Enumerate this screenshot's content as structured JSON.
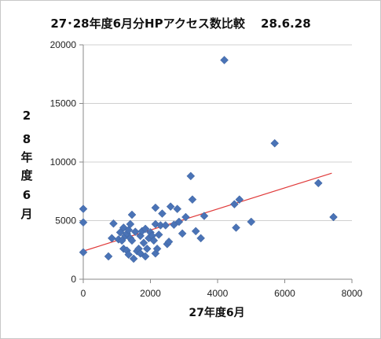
{
  "chart_data": {
    "type": "scatter",
    "title": "27･28年度6月分HPアクセス数比較　 28.6.28",
    "xlabel": "27年度6月",
    "ylabel": [
      "2",
      "8",
      "年",
      "度",
      "6",
      "月"
    ],
    "xlim": [
      0,
      8000
    ],
    "ylim": [
      0,
      20000
    ],
    "xticks": [
      "0",
      "2000",
      "4000",
      "6000",
      "8000"
    ],
    "yticks": [
      "0",
      "5000",
      "10000",
      "15000",
      "20000"
    ],
    "grid": "horizontal",
    "legend": "none",
    "trendline": {
      "type": "linear",
      "from": [
        0,
        2400
      ],
      "to": [
        7400,
        9050
      ]
    },
    "colors": {
      "marker": "#4a73b6",
      "trendline": "#e03a3a",
      "grid": "#d0d0d0",
      "axis": "#8a8a8a"
    },
    "points": [
      {
        "x": 0,
        "y": 6000
      },
      {
        "x": 0,
        "y": 4850
      },
      {
        "x": 0,
        "y": 2300
      },
      {
        "x": 750,
        "y": 1950
      },
      {
        "x": 850,
        "y": 3500
      },
      {
        "x": 900,
        "y": 4750
      },
      {
        "x": 1050,
        "y": 3400
      },
      {
        "x": 1100,
        "y": 4000
      },
      {
        "x": 1150,
        "y": 3300
      },
      {
        "x": 1200,
        "y": 2600
      },
      {
        "x": 1200,
        "y": 4400
      },
      {
        "x": 1250,
        "y": 3700
      },
      {
        "x": 1300,
        "y": 3900
      },
      {
        "x": 1300,
        "y": 2450
      },
      {
        "x": 1350,
        "y": 4200
      },
      {
        "x": 1350,
        "y": 2100
      },
      {
        "x": 1400,
        "y": 3500
      },
      {
        "x": 1400,
        "y": 4700
      },
      {
        "x": 1450,
        "y": 5500
      },
      {
        "x": 1450,
        "y": 3300
      },
      {
        "x": 1500,
        "y": 1750
      },
      {
        "x": 1550,
        "y": 4050
      },
      {
        "x": 1600,
        "y": 2400
      },
      {
        "x": 1650,
        "y": 2600
      },
      {
        "x": 1700,
        "y": 3700
      },
      {
        "x": 1700,
        "y": 2200
      },
      {
        "x": 1750,
        "y": 4100
      },
      {
        "x": 1800,
        "y": 3100
      },
      {
        "x": 1850,
        "y": 1950
      },
      {
        "x": 1850,
        "y": 4300
      },
      {
        "x": 1900,
        "y": 2600
      },
      {
        "x": 1950,
        "y": 3500
      },
      {
        "x": 2000,
        "y": 4000
      },
      {
        "x": 2050,
        "y": 3700
      },
      {
        "x": 2100,
        "y": 3300
      },
      {
        "x": 2150,
        "y": 2200
      },
      {
        "x": 2150,
        "y": 4700
      },
      {
        "x": 2150,
        "y": 6100
      },
      {
        "x": 2200,
        "y": 2600
      },
      {
        "x": 2250,
        "y": 3800
      },
      {
        "x": 2300,
        "y": 4600
      },
      {
        "x": 2350,
        "y": 5600
      },
      {
        "x": 2450,
        "y": 4600
      },
      {
        "x": 2500,
        "y": 3000
      },
      {
        "x": 2550,
        "y": 3200
      },
      {
        "x": 2600,
        "y": 6200
      },
      {
        "x": 2700,
        "y": 4650
      },
      {
        "x": 2800,
        "y": 6000
      },
      {
        "x": 2850,
        "y": 4900
      },
      {
        "x": 2950,
        "y": 3900
      },
      {
        "x": 3050,
        "y": 5300
      },
      {
        "x": 3200,
        "y": 8800
      },
      {
        "x": 3250,
        "y": 6800
      },
      {
        "x": 3350,
        "y": 4100
      },
      {
        "x": 3500,
        "y": 3500
      },
      {
        "x": 3600,
        "y": 5400
      },
      {
        "x": 4200,
        "y": 18700
      },
      {
        "x": 4500,
        "y": 6400
      },
      {
        "x": 4550,
        "y": 4400
      },
      {
        "x": 4650,
        "y": 6800
      },
      {
        "x": 5000,
        "y": 4900
      },
      {
        "x": 5700,
        "y": 11600
      },
      {
        "x": 7000,
        "y": 8200
      },
      {
        "x": 7450,
        "y": 5300
      }
    ]
  }
}
